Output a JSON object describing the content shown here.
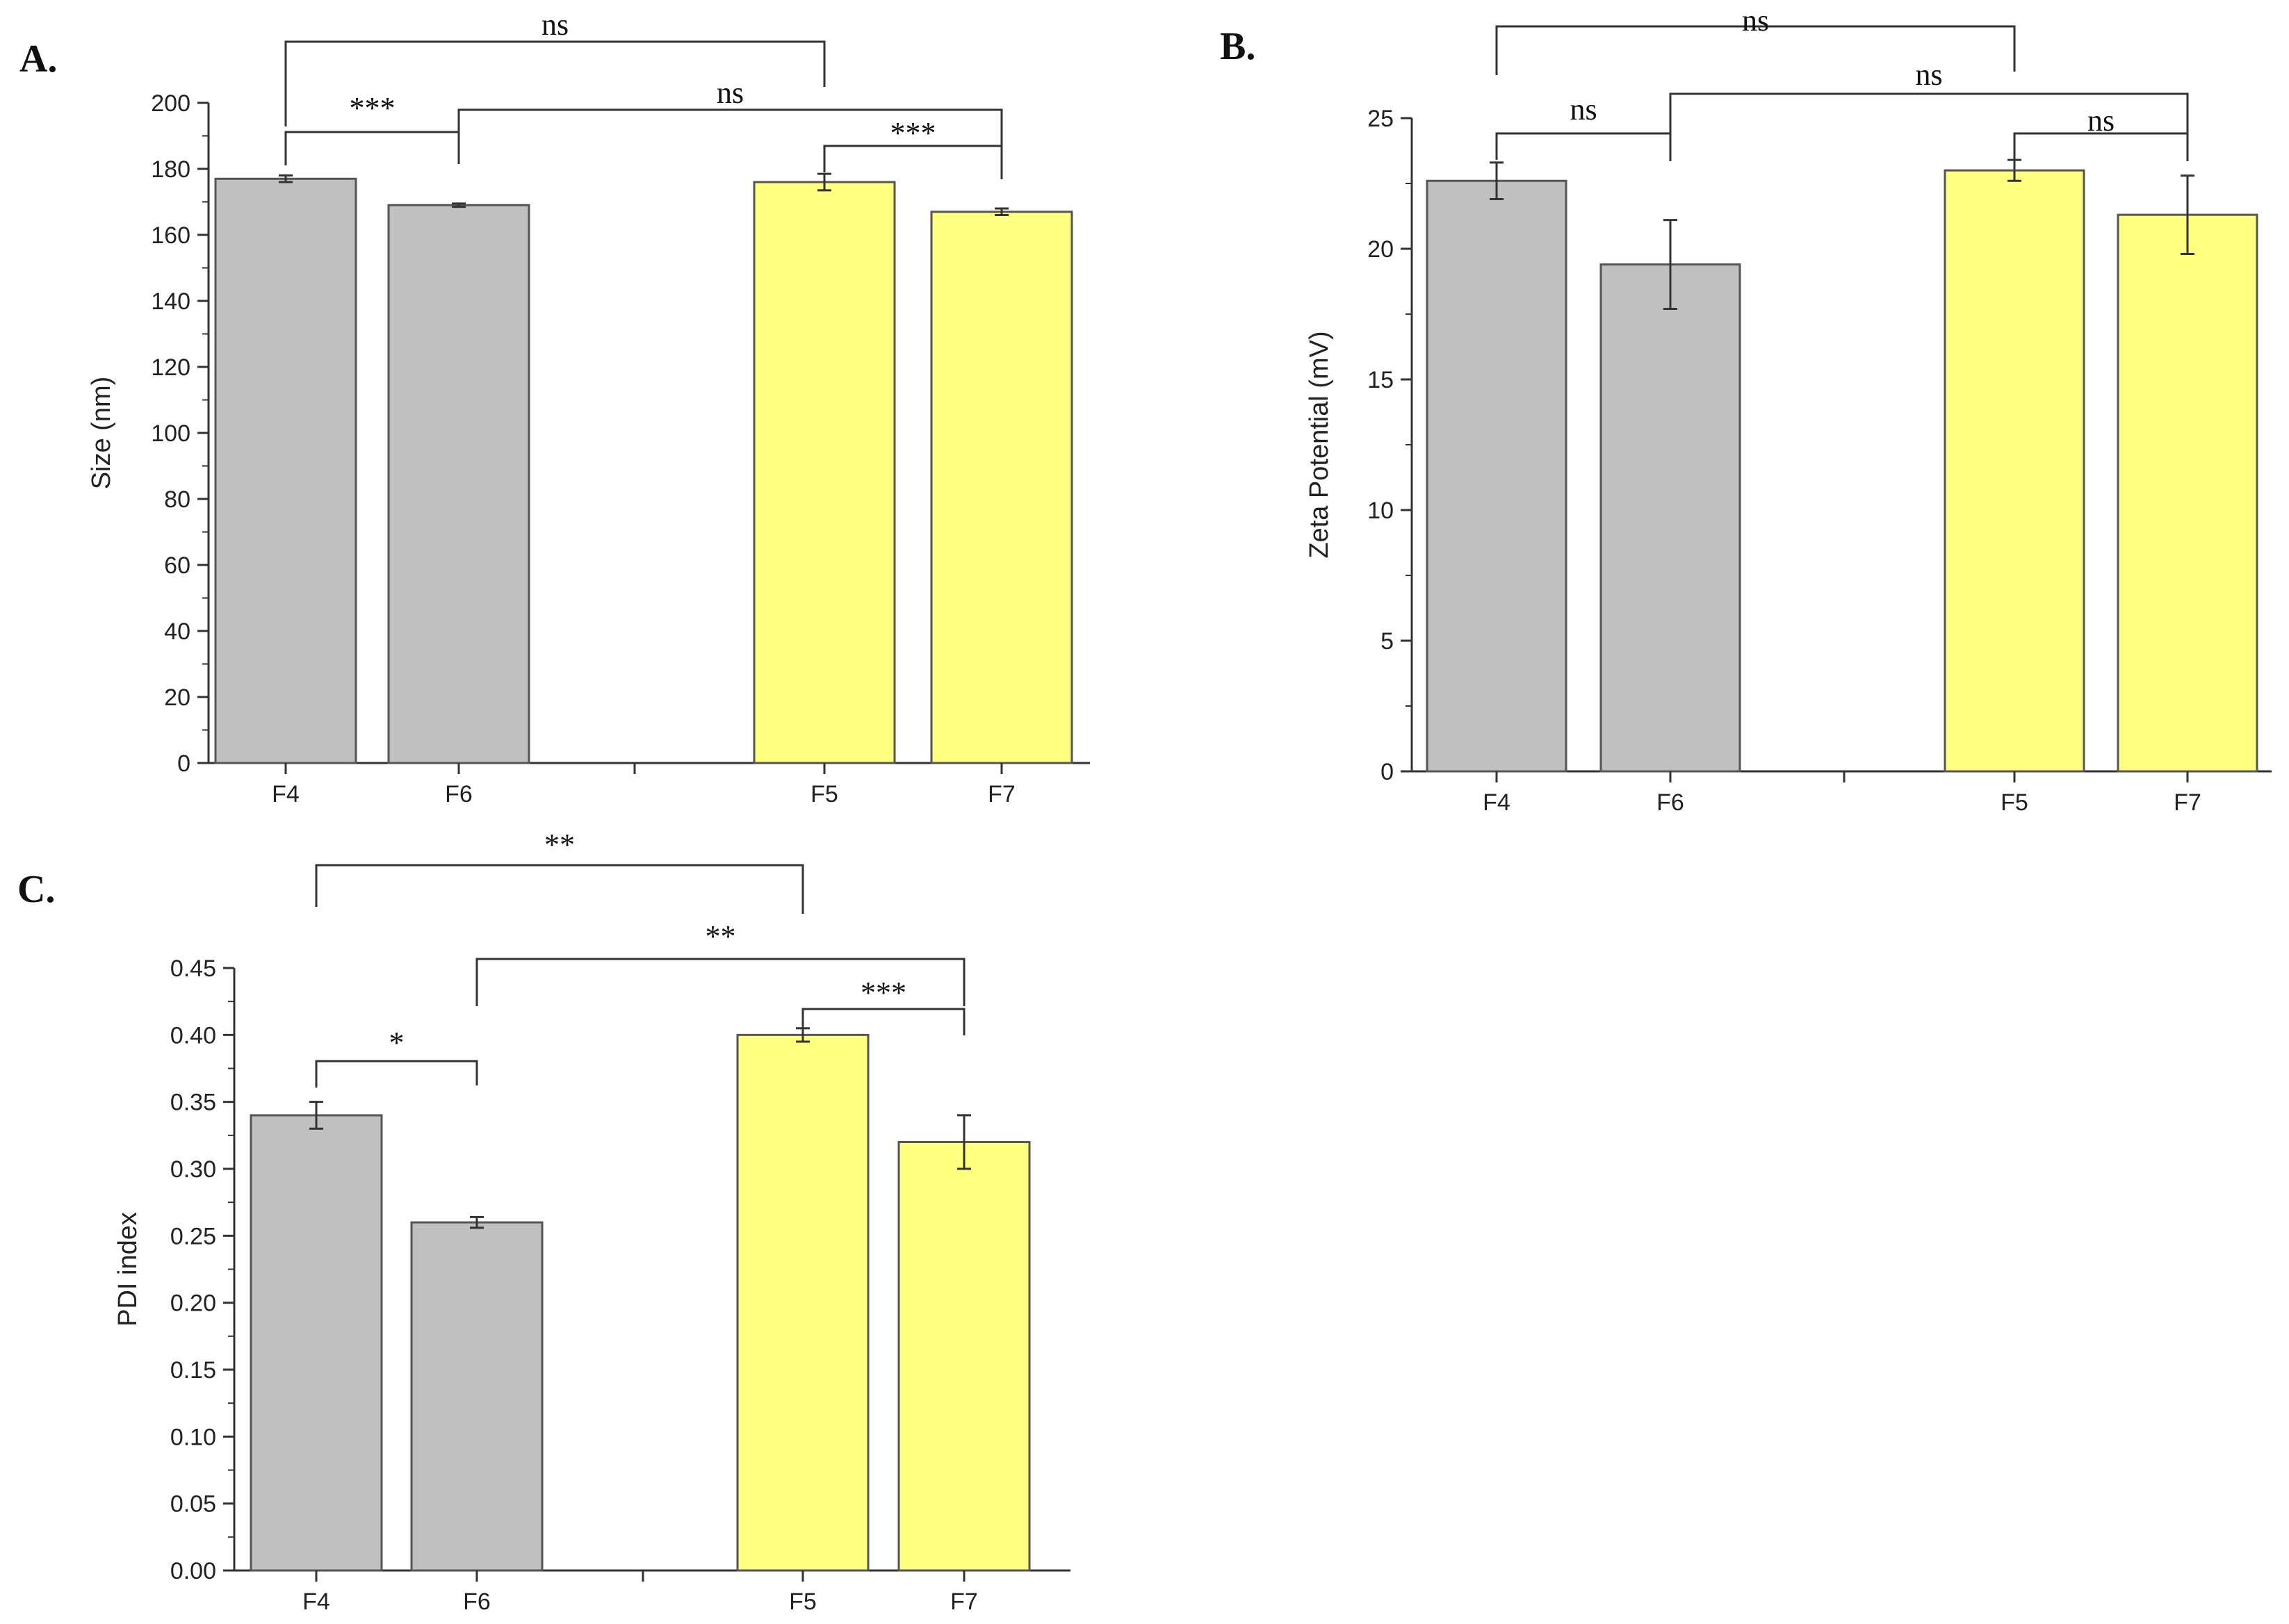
{
  "figure": {
    "panels": [
      "A.",
      "B.",
      "C."
    ]
  },
  "colors": {
    "group1": "#c0c0c0",
    "group2": "#ffff80",
    "bar_stroke": "#555555"
  },
  "chart_data": [
    {
      "panel": "A.",
      "type": "bar",
      "title": "",
      "xlabel": "",
      "ylabel": "Size (nm)",
      "ylim": [
        0,
        200
      ],
      "ticks": [
        0,
        20,
        40,
        60,
        80,
        100,
        120,
        140,
        160,
        180,
        200
      ],
      "tick_labels": [
        "0",
        "20",
        "40",
        "60",
        "80",
        "100",
        "120",
        "140",
        "160",
        "180",
        "200"
      ],
      "categories": [
        "F4",
        "F6",
        "F5",
        "F7"
      ],
      "values": [
        177,
        169,
        176,
        167
      ],
      "errors": [
        1,
        0.5,
        2.5,
        1
      ],
      "groups": [
        1,
        1,
        2,
        2
      ],
      "significance": [
        {
          "label": "ns",
          "from": "F4",
          "to": "F5"
        },
        {
          "label": "***",
          "from": "F4",
          "to": "F6"
        },
        {
          "label": "ns",
          "from": "F6",
          "to": "F7"
        },
        {
          "label": "***",
          "from": "F5",
          "to": "F7"
        }
      ]
    },
    {
      "panel": "B.",
      "type": "bar",
      "title": "",
      "xlabel": "",
      "ylabel": "Zeta Potential (mV)",
      "ylim": [
        0,
        25
      ],
      "ticks": [
        0,
        5,
        10,
        15,
        20,
        25
      ],
      "tick_labels": [
        "0",
        "5",
        "10",
        "15",
        "20",
        "25"
      ],
      "categories": [
        "F4",
        "F6",
        "F5",
        "F7"
      ],
      "values": [
        22.6,
        19.4,
        23.0,
        21.3
      ],
      "errors": [
        0.7,
        1.7,
        0.4,
        1.5
      ],
      "groups": [
        1,
        1,
        2,
        2
      ],
      "significance": [
        {
          "label": "ns",
          "from": "F4",
          "to": "F5"
        },
        {
          "label": "ns",
          "from": "F4",
          "to": "F6"
        },
        {
          "label": "ns",
          "from": "F6",
          "to": "F7"
        },
        {
          "label": "ns",
          "from": "F5",
          "to": "F7"
        }
      ]
    },
    {
      "panel": "C.",
      "type": "bar",
      "title": "",
      "xlabel": "",
      "ylabel": "PDI index",
      "ylim": [
        0,
        0.45
      ],
      "ticks": [
        0,
        0.05,
        0.1,
        0.15,
        0.2,
        0.25,
        0.3,
        0.35,
        0.4,
        0.45
      ],
      "tick_labels": [
        "0.00",
        "0.05",
        "0.10",
        "0.15",
        "0.20",
        "0.25",
        "0.30",
        "0.35",
        "0.40",
        "0.45"
      ],
      "categories": [
        "F4",
        "F6",
        "F5",
        "F7"
      ],
      "values": [
        0.34,
        0.26,
        0.4,
        0.32
      ],
      "errors": [
        0.01,
        0.004,
        0.005,
        0.02
      ],
      "groups": [
        1,
        1,
        2,
        2
      ],
      "significance": [
        {
          "label": "**",
          "from": "F4",
          "to": "F5"
        },
        {
          "label": "*",
          "from": "F4",
          "to": "F6"
        },
        {
          "label": "**",
          "from": "F6",
          "to": "F7"
        },
        {
          "label": "***",
          "from": "F5",
          "to": "F7"
        }
      ]
    }
  ]
}
